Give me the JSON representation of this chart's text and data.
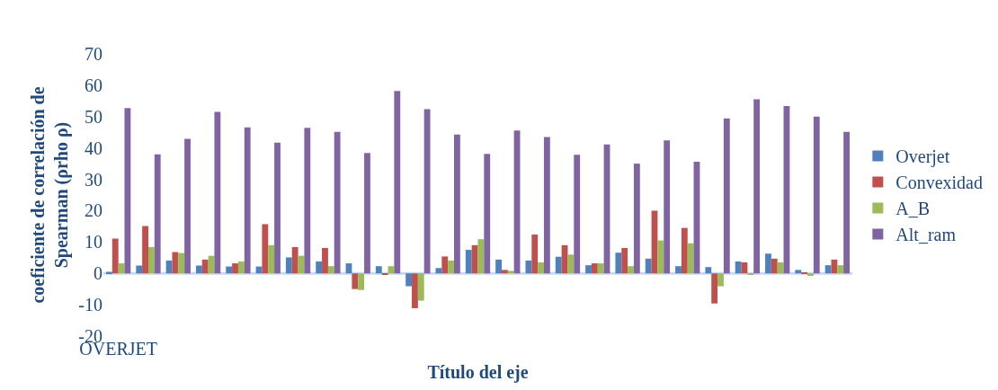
{
  "chart_data": {
    "type": "bar",
    "xlabel": "Título del eje",
    "ylabel": "coeficiente de correlación de\nSpearman (ρrho ρ)",
    "categories": [
      "OVERJET",
      null,
      null,
      null,
      null,
      null,
      null,
      null,
      null,
      null,
      null,
      null,
      null,
      null,
      null,
      null,
      null,
      null,
      null,
      null,
      null,
      null,
      null,
      null,
      null
    ],
    "series": [
      {
        "name": "Overjet",
        "color": "#4f81bd",
        "values": [
          0.5,
          2.5,
          4.1,
          2.5,
          2.2,
          2.2,
          5.1,
          3.8,
          3.2,
          2.3,
          -4.1,
          1.7,
          7.5,
          4.4,
          4.1,
          5.3,
          2.6,
          6.6,
          4.7,
          2.3,
          2.0,
          3.8,
          6.3,
          1.1,
          2.6
        ]
      },
      {
        "name": "Convexidad",
        "color": "#c0504d",
        "values": [
          11.1,
          15.1,
          6.8,
          4.4,
          3.2,
          15.7,
          8.4,
          8.1,
          -5.0,
          -0.3,
          -11.1,
          5.4,
          9.0,
          1.1,
          12.4,
          9.0,
          3.2,
          8.1,
          20.0,
          14.5,
          -9.6,
          3.5,
          4.7,
          0.3,
          4.4
        ]
      },
      {
        "name": "A_B",
        "color": "#9bbb59",
        "values": [
          3.2,
          8.4,
          6.5,
          5.6,
          3.8,
          9.0,
          5.6,
          2.3,
          -5.3,
          2.3,
          -8.7,
          4.1,
          10.9,
          0.8,
          3.5,
          6.0,
          3.2,
          2.3,
          10.5,
          9.6,
          -4.1,
          -0.3,
          3.5,
          -0.8,
          2.6
        ]
      },
      {
        "name": "Alt_ram",
        "color": "#8064a2",
        "values": [
          52.7,
          38.0,
          42.9,
          51.5,
          46.6,
          41.7,
          46.4,
          45.1,
          38.4,
          58.2,
          52.4,
          44.3,
          38.1,
          45.6,
          43.5,
          37.8,
          41.1,
          35.0,
          42.4,
          35.6,
          49.4,
          55.5,
          53.4,
          50.0,
          45.1
        ]
      }
    ],
    "ylim": [
      -20,
      70
    ],
    "yticks": [
      -20,
      -10,
      0,
      10,
      20,
      30,
      40,
      50,
      60,
      70
    ],
    "ref_lines": [
      {
        "axis": "y",
        "value": 0,
        "color": "#c6d9f1"
      }
    ],
    "legend": "right"
  }
}
